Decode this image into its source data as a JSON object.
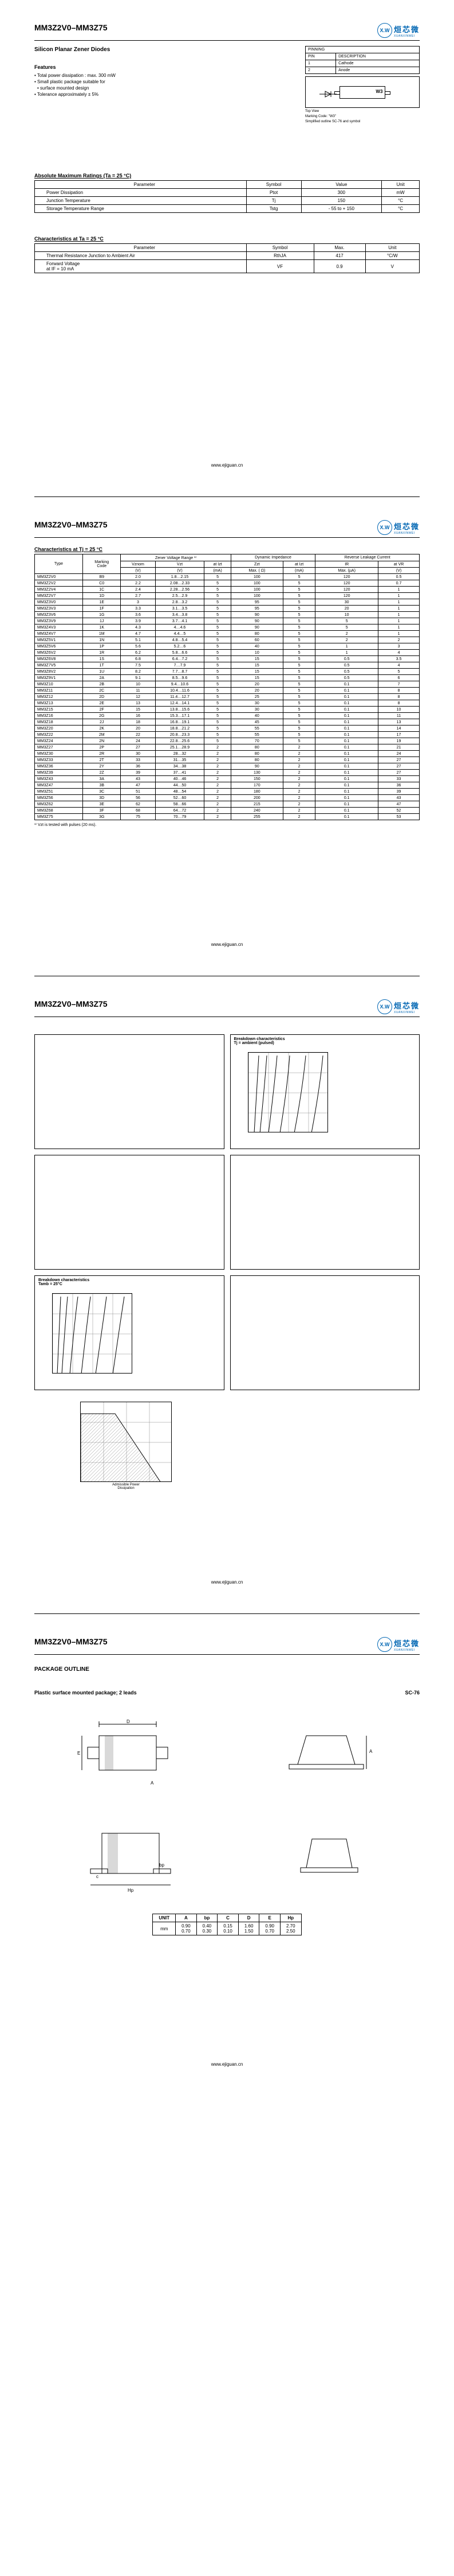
{
  "header": {
    "title": "MM3Z2V0–MM3Z75",
    "subtitle": "Silicon Planar Zener Diodes",
    "logo_cn": "烜芯微",
    "logo_en": "XUANXINWEI",
    "logo_icon": "X.W"
  },
  "features": {
    "heading": "Features",
    "items": [
      "Total power dissipation : max. 300 mW",
      "Small plastic package suitable for",
      "surface mounted design",
      "Tolerance approximately ± 5%"
    ]
  },
  "pinning": {
    "heading": "PINNING",
    "col1": "PIN",
    "col2": "DESCRIPTION",
    "r1p": "1",
    "r1d": "Cathode",
    "r2p": "2",
    "r2d": "Anode",
    "lbl1": "1",
    "lbl2": "2",
    "mark": "W3",
    "n1": "Top View",
    "n2": "Marking Code: \"W3\"",
    "n3": "Simplified outline SC-76 and symbol"
  },
  "amr": {
    "heading": "Absolute Maximum Ratings (Ta = 25 °C)",
    "h_param": "Parameter",
    "h_sym": "Symbol",
    "h_val": "Value",
    "h_unit": "Unit",
    "rows": [
      {
        "p": "Power Dissipation",
        "s": "Ptot",
        "v": "300",
        "u": "mW"
      },
      {
        "p": "Junction Temperature",
        "s": "Tj",
        "v": "150",
        "u": "°C"
      },
      {
        "p": "Storage Temperature Range",
        "s": "Tstg",
        "v": "- 55 to + 150",
        "u": "°C"
      }
    ]
  },
  "char25": {
    "heading": "Characteristics at Ta = 25 °C",
    "h_param": "Parameter",
    "h_sym": "Symbol",
    "h_max": "Max.",
    "h_unit": "Unit",
    "rows": [
      {
        "p": "Thermal Resistance Junction to Ambient Air",
        "s": "RthJA",
        "v": "417",
        "u": "°C/W"
      },
      {
        "p": "Forward Voltage\nat IF = 10 mA",
        "s": "VF",
        "v": "0.9",
        "u": "V"
      }
    ]
  },
  "maintbl": {
    "heading": "Characteristics at Tj = 25 °C",
    "h_type": "Type",
    "h_mark": "Marking\nCode",
    "h_vrange": "Zener Voltage Range ¹⁾",
    "h_dyn": "Dynamic Impedance",
    "h_rev": "Reverse Leakage Current",
    "sh_vnom": "Vznom",
    "sh_vzt": "Vzt",
    "sh_iz": "at Izt",
    "sh_zzt": "Zzt",
    "sh_diz": "at Izt",
    "sh_ir": "IR",
    "sh_atvr": "at VR",
    "u_v": "(V)",
    "u_ma": "(mA)",
    "u_ohm": "Max. ( Ω)",
    "u_ma2": "(mA)",
    "u_ua": "Max. (µA)",
    "u_v2": "(V)",
    "rows": [
      [
        "MM3Z2V0",
        "B9",
        "2.0",
        "1.8…2.15",
        "5",
        "100",
        "5",
        "120",
        "0.5"
      ],
      [
        "MM3Z2V2",
        "C0",
        "2.2",
        "2.08…2.33",
        "5",
        "100",
        "5",
        "120",
        "0.7"
      ],
      [
        "MM3Z2V4",
        "1C",
        "2.4",
        "2.28…2.56",
        "5",
        "100",
        "5",
        "120",
        "1"
      ],
      [
        "MM3Z2V7",
        "1D",
        "2.7",
        "2.5…2.9",
        "5",
        "100",
        "5",
        "120",
        "1"
      ],
      [
        "MM3Z3V0",
        "1E",
        "3",
        "2.8…3.2",
        "5",
        "95",
        "5",
        "30",
        "1"
      ],
      [
        "MM3Z3V3",
        "1F",
        "3.3",
        "3.1…3.5",
        "5",
        "95",
        "5",
        "20",
        "1"
      ],
      [
        "MM3Z3V6",
        "1G",
        "3.6",
        "3.4…3.8",
        "5",
        "90",
        "5",
        "10",
        "1"
      ],
      [
        "MM3Z3V9",
        "1J",
        "3.9",
        "3.7…4.1",
        "5",
        "90",
        "5",
        "5",
        "1"
      ],
      [
        "MM3Z4V3",
        "1K",
        "4.3",
        "4…4.6",
        "5",
        "90",
        "5",
        "5",
        "1"
      ],
      [
        "MM3Z4V7",
        "1M",
        "4.7",
        "4.4…5",
        "5",
        "80",
        "5",
        "2",
        "1"
      ],
      [
        "MM3Z5V1",
        "1N",
        "5.1",
        "4.8…5.4",
        "5",
        "60",
        "5",
        "2",
        "2"
      ],
      [
        "MM3Z5V6",
        "1P",
        "5.6",
        "5.2…6",
        "5",
        "40",
        "5",
        "1",
        "3"
      ],
      [
        "MM3Z6V2",
        "1R",
        "6.2",
        "5.8…6.6",
        "5",
        "10",
        "5",
        "1",
        "4"
      ],
      [
        "MM3Z6V8",
        "1S",
        "6.8",
        "6.4…7.2",
        "5",
        "15",
        "5",
        "0.5",
        "3.5"
      ],
      [
        "MM3Z7V5",
        "1T",
        "7.5",
        "7…7.9",
        "5",
        "15",
        "5",
        "0.5",
        "4"
      ],
      [
        "MM3Z8V2",
        "1U",
        "8.2",
        "7.7…8.7",
        "5",
        "15",
        "5",
        "0.5",
        "5"
      ],
      [
        "MM3Z9V1",
        "2A",
        "9.1",
        "8.5…9.6",
        "5",
        "15",
        "5",
        "0.5",
        "6"
      ],
      [
        "MM3Z10",
        "2B",
        "10",
        "9.4…10.6",
        "5",
        "20",
        "5",
        "0.1",
        "7"
      ],
      [
        "MM3Z11",
        "2C",
        "11",
        "10.4…11.6",
        "5",
        "20",
        "5",
        "0.1",
        "8"
      ],
      [
        "MM3Z12",
        "2D",
        "12",
        "11.4…12.7",
        "5",
        "25",
        "5",
        "0.1",
        "8"
      ],
      [
        "MM3Z13",
        "2E",
        "13",
        "12.4…14.1",
        "5",
        "30",
        "5",
        "0.1",
        "8"
      ],
      [
        "MM3Z15",
        "2F",
        "15",
        "13.8…15.6",
        "5",
        "30",
        "5",
        "0.1",
        "10"
      ],
      [
        "MM3Z16",
        "2G",
        "16",
        "15.3…17.1",
        "5",
        "40",
        "5",
        "0.1",
        "11"
      ],
      [
        "MM3Z18",
        "2J",
        "18",
        "16.8…19.1",
        "5",
        "45",
        "5",
        "0.1",
        "13"
      ],
      [
        "MM3Z20",
        "2K",
        "20",
        "18.8…21.2",
        "5",
        "55",
        "5",
        "0.1",
        "14"
      ],
      [
        "MM3Z22",
        "2M",
        "22",
        "20.8…23.3",
        "5",
        "55",
        "5",
        "0.1",
        "17"
      ],
      [
        "MM3Z24",
        "2N",
        "24",
        "22.8…25.6",
        "5",
        "70",
        "5",
        "0.1",
        "19"
      ],
      [
        "MM3Z27",
        "2P",
        "27",
        "25.1…28.9",
        "2",
        "80",
        "2",
        "0.1",
        "21"
      ],
      [
        "MM3Z30",
        "2R",
        "30",
        "28…32",
        "2",
        "80",
        "2",
        "0.1",
        "24"
      ],
      [
        "MM3Z33",
        "2T",
        "33",
        "31…35",
        "2",
        "80",
        "2",
        "0.1",
        "27"
      ],
      [
        "MM3Z36",
        "2Y",
        "36",
        "34…38",
        "2",
        "90",
        "2",
        "0.1",
        "27"
      ],
      [
        "MM3Z39",
        "2Z",
        "39",
        "37…41",
        "2",
        "130",
        "2",
        "0.1",
        "27"
      ],
      [
        "MM3Z43",
        "3A",
        "43",
        "40…46",
        "2",
        "150",
        "2",
        "0.1",
        "33"
      ],
      [
        "MM3Z47",
        "3B",
        "47",
        "44…50",
        "2",
        "170",
        "2",
        "0.1",
        "36"
      ],
      [
        "MM3Z51",
        "3C",
        "51",
        "48…54",
        "2",
        "180",
        "2",
        "0.1",
        "39"
      ],
      [
        "MM3Z56",
        "3D",
        "56",
        "52…60",
        "2",
        "200",
        "2",
        "0.1",
        "43"
      ],
      [
        "MM3Z62",
        "3E",
        "62",
        "58…66",
        "2",
        "215",
        "2",
        "0.1",
        "47"
      ],
      [
        "MM3Z68",
        "3F",
        "68",
        "64…72",
        "2",
        "240",
        "2",
        "0.1",
        "52"
      ],
      [
        "MM3Z75",
        "3G",
        "75",
        "70…79",
        "2",
        "255",
        "2",
        "0.1",
        "53"
      ]
    ],
    "footnote": "¹⁾ Vzt is tested with pulses (20 ms)."
  },
  "graphs": {
    "g1": "Breakdown characteristics\nTj = ambient (pulsed)",
    "g2": "",
    "g3": "Breakdown characteristics\nTamb = 25°C",
    "g4": "Admissible Power\nDissipation"
  },
  "pkg": {
    "heading": "PACKAGE OUTLINE",
    "sub": "Plastic surface mounted package; 2 leads",
    "code": "SC-76",
    "tbl_h": [
      "UNIT",
      "A",
      "bp",
      "C",
      "D",
      "E",
      "Hp"
    ],
    "tbl_r1": [
      "mm",
      "0.90\n0.70",
      "0.40\n0.30",
      "0.15\n0.10",
      "1.60\n1.50",
      "0.90\n0.70",
      "2.70\n2.50"
    ]
  },
  "footer": {
    "url": "www.ejiguan.cn"
  }
}
